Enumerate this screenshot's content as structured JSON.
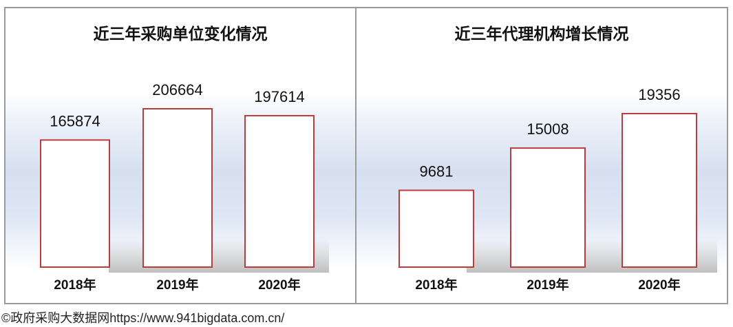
{
  "chart_data": [
    {
      "type": "bar",
      "title": "近三年采购单位变化情况",
      "categories": [
        "2018年",
        "2019年",
        "2020年"
      ],
      "values": [
        165874,
        206664,
        197614
      ],
      "bar_color": "#c0393b",
      "bar_fill": "#ffffff"
    },
    {
      "type": "bar",
      "title": "近三年代理机构增长情况",
      "categories": [
        "2018年",
        "2019年",
        "2020年"
      ],
      "values": [
        9681,
        15008,
        19356
      ],
      "bar_color": "#c0393b",
      "bar_fill": "#ffffff"
    }
  ],
  "credit": "©政府采购大数据网https://www.941bigdata.com.cn/"
}
